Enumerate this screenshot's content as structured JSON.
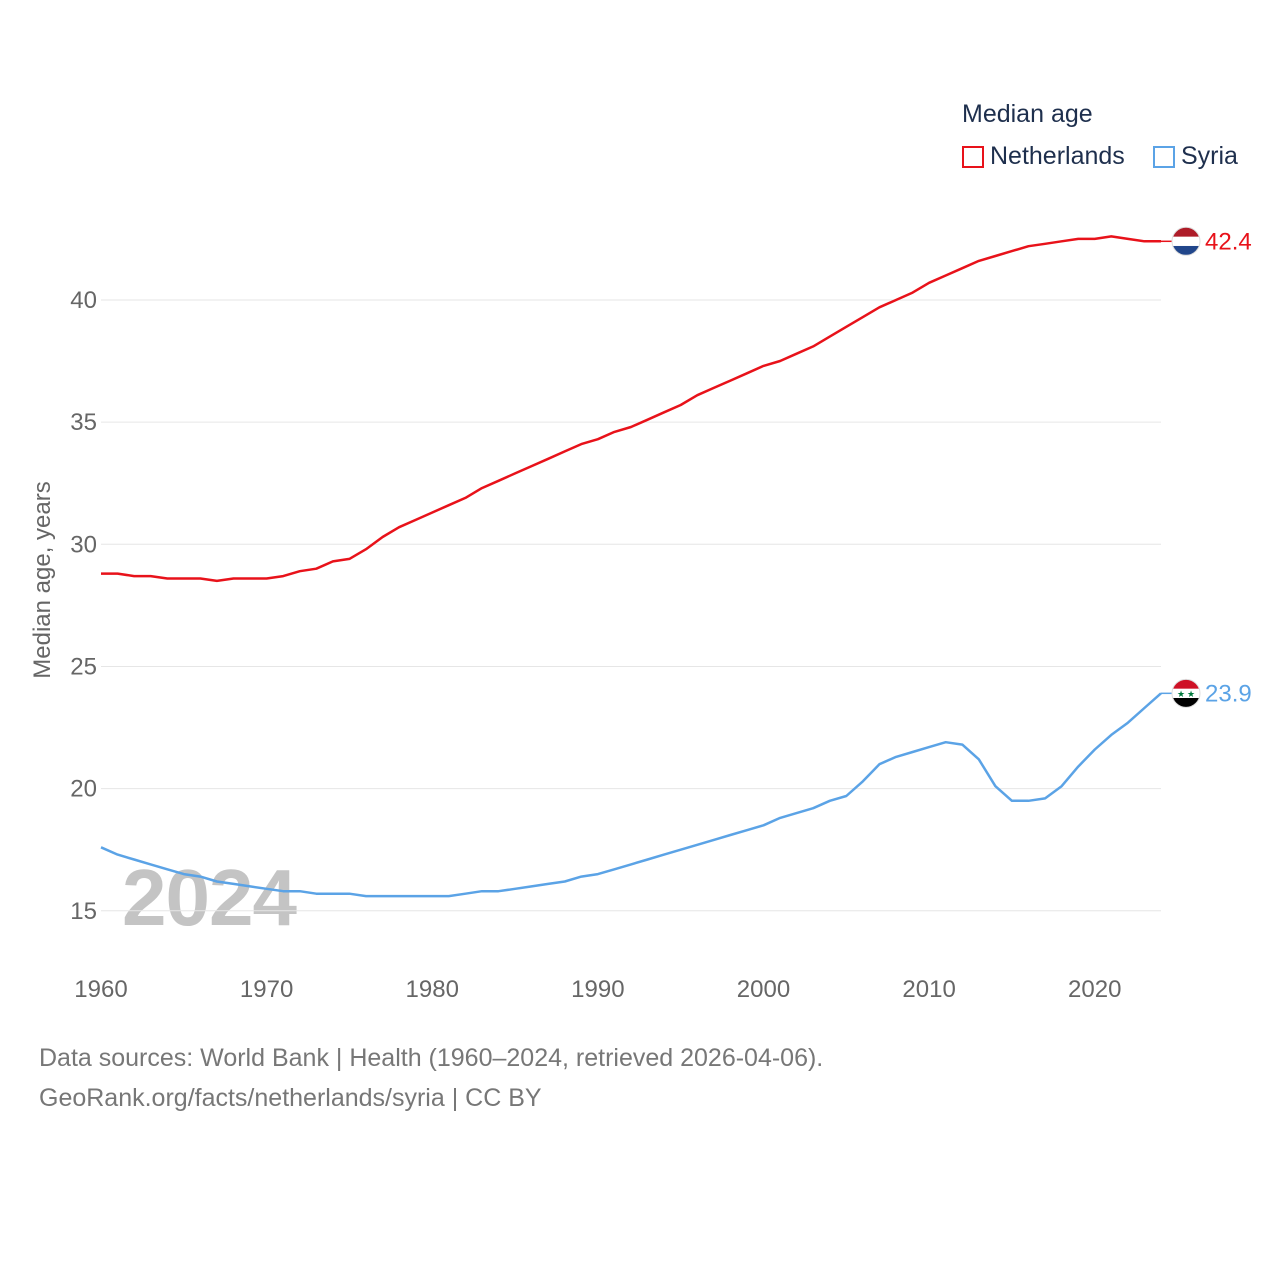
{
  "legend": {
    "title": "Median age",
    "items": [
      {
        "label": "Netherlands",
        "color": "#e8121a"
      },
      {
        "label": "Syria",
        "color": "#5ba3e6"
      }
    ]
  },
  "year_watermark": "2024",
  "footer": {
    "line1": "Data sources: World Bank | Health (1960–2024, retrieved 2026-04-06).",
    "line2": "GeoRank.org/facts/netherlands/syria | CC BY"
  },
  "chart_data": {
    "type": "line",
    "title": "Median age",
    "xlabel": "",
    "ylabel": "Median age, years",
    "xlim": [
      1960,
      2024
    ],
    "ylim": [
      13.6,
      44.5
    ],
    "x_ticks": [
      1960,
      1970,
      1980,
      1990,
      2000,
      2010,
      2020
    ],
    "y_ticks": [
      15,
      20,
      25,
      30,
      35,
      40
    ],
    "grid": true,
    "legend_position": "top-right",
    "x": [
      1960,
      1961,
      1962,
      1963,
      1964,
      1965,
      1966,
      1967,
      1968,
      1969,
      1970,
      1971,
      1972,
      1973,
      1974,
      1975,
      1976,
      1977,
      1978,
      1979,
      1980,
      1981,
      1982,
      1983,
      1984,
      1985,
      1986,
      1987,
      1988,
      1989,
      1990,
      1991,
      1992,
      1993,
      1994,
      1995,
      1996,
      1997,
      1998,
      1999,
      2000,
      2001,
      2002,
      2003,
      2004,
      2005,
      2006,
      2007,
      2008,
      2009,
      2010,
      2011,
      2012,
      2013,
      2014,
      2015,
      2016,
      2017,
      2018,
      2019,
      2020,
      2021,
      2022,
      2023,
      2024
    ],
    "series": [
      {
        "name": "Netherlands",
        "color": "#e8121a",
        "end_label": "42.4",
        "flag": "netherlands-flag",
        "values": [
          28.8,
          28.8,
          28.7,
          28.7,
          28.6,
          28.6,
          28.6,
          28.5,
          28.6,
          28.6,
          28.6,
          28.7,
          28.9,
          29.0,
          29.3,
          29.4,
          29.8,
          30.3,
          30.7,
          31.0,
          31.3,
          31.6,
          31.9,
          32.3,
          32.6,
          32.9,
          33.2,
          33.5,
          33.8,
          34.1,
          34.3,
          34.6,
          34.8,
          35.1,
          35.4,
          35.7,
          36.1,
          36.4,
          36.7,
          37.0,
          37.3,
          37.5,
          37.8,
          38.1,
          38.5,
          38.9,
          39.3,
          39.7,
          40.0,
          40.3,
          40.7,
          41.0,
          41.3,
          41.6,
          41.8,
          42.0,
          42.2,
          42.3,
          42.4,
          42.5,
          42.5,
          42.6,
          42.5,
          42.4,
          42.4
        ]
      },
      {
        "name": "Syria",
        "color": "#5ba3e6",
        "end_label": "23.9",
        "flag": "syria-flag",
        "values": [
          17.6,
          17.3,
          17.1,
          16.9,
          16.7,
          16.5,
          16.4,
          16.2,
          16.1,
          16.0,
          15.9,
          15.8,
          15.8,
          15.7,
          15.7,
          15.7,
          15.6,
          15.6,
          15.6,
          15.6,
          15.6,
          15.6,
          15.7,
          15.8,
          15.8,
          15.9,
          16.0,
          16.1,
          16.2,
          16.4,
          16.5,
          16.7,
          16.9,
          17.1,
          17.3,
          17.5,
          17.7,
          17.9,
          18.1,
          18.3,
          18.5,
          18.8,
          19.0,
          19.2,
          19.5,
          19.7,
          20.3,
          21.0,
          21.3,
          21.5,
          21.7,
          21.9,
          21.8,
          21.2,
          20.1,
          19.5,
          19.5,
          19.6,
          20.1,
          20.9,
          21.6,
          22.2,
          22.7,
          23.3,
          23.9
        ]
      }
    ]
  }
}
